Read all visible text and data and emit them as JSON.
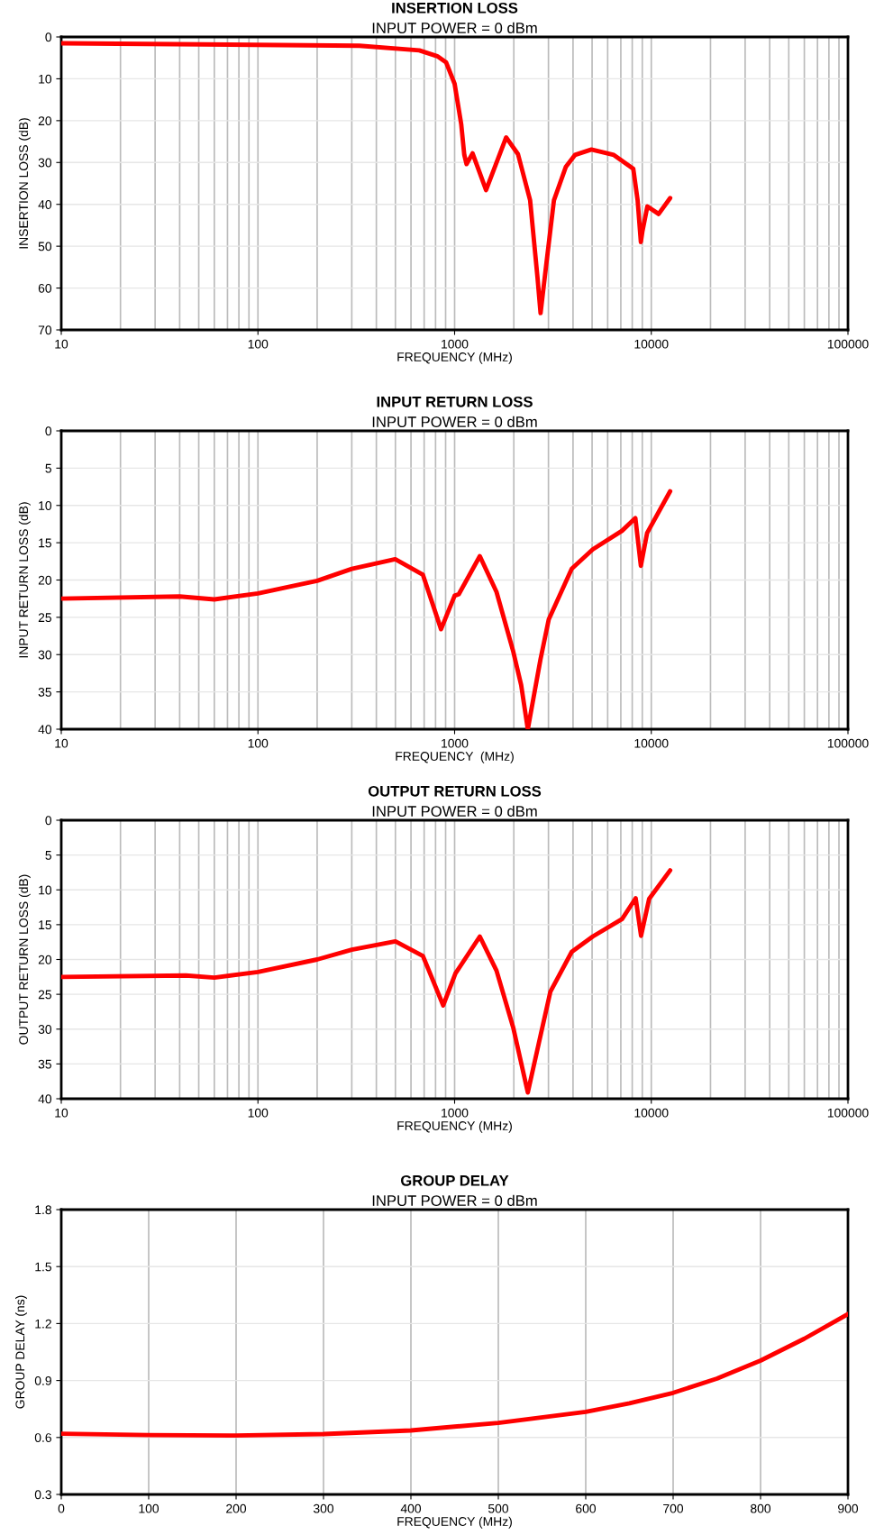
{
  "chart_data": [
    {
      "type": "line",
      "title": "INSERTION LOSS",
      "subtitle": "INPUT POWER = 0 dBm",
      "xlabel": "FREQUENCY (MHz)",
      "ylabel": "INSERTION LOSS (dB)",
      "log": "x",
      "grid": true,
      "line_style": "solid",
      "xlim": [
        10,
        100000
      ],
      "xticks": [
        10,
        100,
        1000,
        10000,
        100000
      ],
      "ylim": [
        70,
        0
      ],
      "yticks": [
        0,
        10,
        20,
        30,
        40,
        50,
        60,
        70
      ],
      "series": [
        {
          "color": "#ff0000",
          "x": [
            10,
            328,
            661,
            816,
            906,
            1000,
            1080,
            1120,
            1150,
            1234,
            1445,
            1828,
            2100,
            2420,
            2640,
            2735,
            2930,
            3200,
            3680,
            4090,
            4960,
            6450,
            8100,
            8520,
            8850,
            9010,
            9550,
            10900,
            12470
          ],
          "values": [
            1.5,
            2.1,
            3.2,
            4.6,
            6.1,
            11.2,
            20.8,
            28.2,
            30.4,
            27.8,
            36.6,
            24,
            28,
            39,
            57.6,
            66,
            54,
            39,
            31,
            28.2,
            26.9,
            28.2,
            31.5,
            39,
            49,
            46.5,
            40.5,
            42.3,
            38.5
          ]
        }
      ]
    },
    {
      "type": "line",
      "title": "INPUT RETURN LOSS",
      "subtitle": "INPUT POWER = 0 dBm",
      "xlabel": "FREQUENCY  (MHz)",
      "ylabel": "INPUT RETURN LOSS (dB)",
      "log": "x",
      "grid": true,
      "line_style": "solid",
      "xlim": [
        10,
        100000
      ],
      "xticks": [
        10,
        100,
        1000,
        10000,
        100000
      ],
      "ylim": [
        40,
        0
      ],
      "yticks": [
        0,
        5,
        10,
        15,
        20,
        25,
        30,
        35,
        40
      ],
      "series": [
        {
          "color": "#ff0000",
          "x": [
            10,
            40,
            60,
            100,
            200,
            300,
            499,
            690,
            853,
            1000,
            1050,
            1343,
            1633,
            1987,
            2180,
            2356,
            2730,
            3010,
            3940,
            5040,
            7100,
            8300,
            8850,
            9520,
            12470
          ],
          "values": [
            22.5,
            22.2,
            22.6,
            21.8,
            20.1,
            18.5,
            17.2,
            19.3,
            26.6,
            22.1,
            21.9,
            16.8,
            21.6,
            29.6,
            34.1,
            40,
            30.7,
            25.3,
            18.5,
            15.9,
            13.4,
            11.7,
            18.1,
            13.7,
            8.1
          ]
        }
      ]
    },
    {
      "type": "line",
      "title": "OUTPUT RETURN LOSS",
      "subtitle": "INPUT POWER = 0 dBm",
      "xlabel": "FREQUENCY (MHz)",
      "ylabel": "OUTPUT RETURN LOSS (dB)",
      "log": "x",
      "grid": true,
      "line_style": "solid",
      "xlim": [
        10,
        100000
      ],
      "xticks": [
        10,
        100,
        1000,
        10000,
        100000
      ],
      "ylim": [
        40,
        0
      ],
      "yticks": [
        0,
        5,
        10,
        15,
        20,
        25,
        30,
        35,
        40
      ],
      "series": [
        {
          "color": "#ff0000",
          "x": [
            10,
            43,
            60,
            100,
            200,
            300,
            500,
            690,
            875,
            1010,
            1343,
            1633,
            1987,
            2356,
            2730,
            3070,
            3940,
            5040,
            7100,
            8330,
            8870,
            9750,
            12470
          ],
          "values": [
            22.5,
            22.3,
            22.6,
            21.8,
            20.0,
            18.6,
            17.4,
            19.5,
            26.6,
            22.0,
            16.7,
            21.6,
            29.8,
            39.1,
            31.0,
            24.6,
            18.9,
            16.7,
            14.2,
            11.2,
            16.6,
            11.3,
            7.2
          ]
        }
      ]
    },
    {
      "type": "line",
      "title": "GROUP DELAY",
      "subtitle": "INPUT POWER = 0 dBm",
      "xlabel": "FREQUENCY (MHz)",
      "ylabel": "GROUP DELAY (ns)",
      "grid": true,
      "line_style": "solid",
      "xlim": [
        0,
        900
      ],
      "xticks": [
        0,
        100,
        200,
        300,
        400,
        500,
        600,
        700,
        800,
        900
      ],
      "ylim": [
        0.3,
        1.8
      ],
      "yticks": [
        0.3,
        0.6,
        0.9,
        1.2,
        1.5,
        1.8
      ],
      "series": [
        {
          "color": "#ff0000",
          "x": [
            0,
            100,
            200,
            300,
            400,
            500,
            600,
            650,
            700,
            750,
            800,
            850,
            900
          ],
          "values": [
            0.62,
            0.613,
            0.61,
            0.618,
            0.637,
            0.677,
            0.735,
            0.78,
            0.835,
            0.91,
            1.005,
            1.12,
            1.25
          ]
        }
      ]
    }
  ]
}
